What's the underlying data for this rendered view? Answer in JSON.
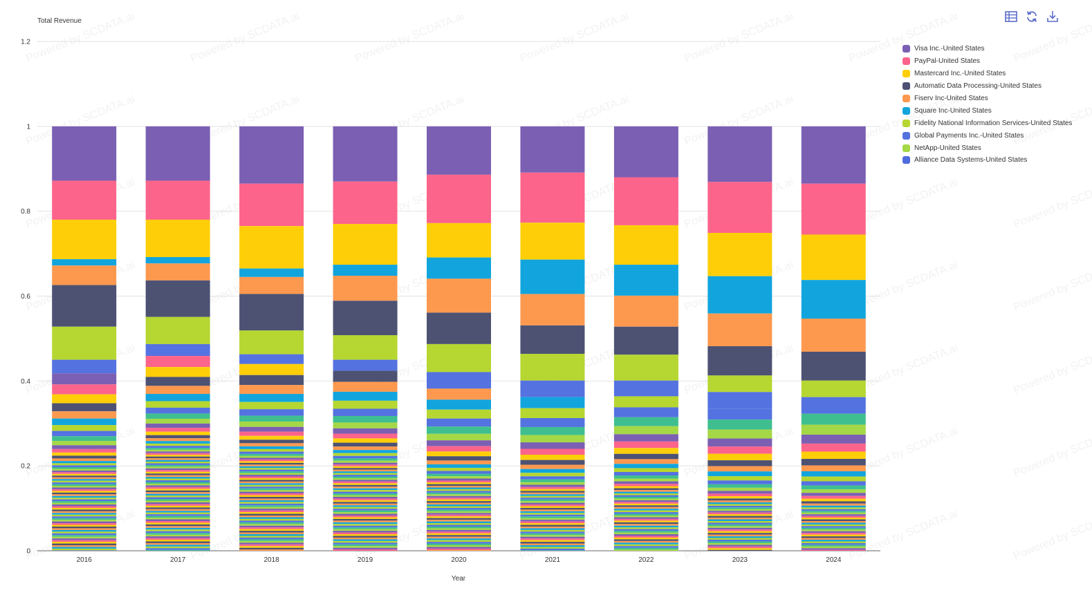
{
  "toolbar": {
    "table_icon": "table-icon",
    "refresh_icon": "refresh-icon",
    "download_icon": "download-icon"
  },
  "watermark": "Powered by SCDATA.ai",
  "chart_data": {
    "type": "bar",
    "stacked": true,
    "ylabel": "Total Revenue",
    "xlabel": "Year",
    "ylim": [
      0,
      1.2
    ],
    "yticks": [
      0,
      0.2,
      0.4,
      0.6,
      0.8,
      1,
      1.2
    ],
    "grid": true,
    "legend_position": "right",
    "categories": [
      "2016",
      "2017",
      "2018",
      "2019",
      "2020",
      "2021",
      "2022",
      "2023",
      "2024"
    ],
    "series": [
      {
        "name": "Visa Inc.-United States",
        "color": "#7b5fb3",
        "values": [
          0.128,
          0.128,
          0.135,
          0.13,
          0.114,
          0.109,
          0.12,
          0.131,
          0.135
        ]
      },
      {
        "name": "PayPal-United States",
        "color": "#fc648b",
        "values": [
          0.092,
          0.092,
          0.1,
          0.1,
          0.114,
          0.118,
          0.113,
          0.12,
          0.12
        ]
      },
      {
        "name": "Mastercard Inc.-United States",
        "color": "#fecf09",
        "values": [
          0.093,
          0.088,
          0.1,
          0.096,
          0.081,
          0.087,
          0.093,
          0.102,
          0.107
        ]
      },
      {
        "name": "Square Inc-United States",
        "color": "#12a5dd",
        "values": [
          0.015,
          0.015,
          0.02,
          0.026,
          0.05,
          0.081,
          0.073,
          0.088,
          0.091
        ]
      },
      {
        "name": "Fiserv Inc-United States",
        "color": "#fd994f",
        "values": [
          0.046,
          0.04,
          0.04,
          0.059,
          0.08,
          0.074,
          0.073,
          0.077,
          0.078
        ]
      },
      {
        "name": "Automatic Data Processing-United States",
        "color": "#4d5273",
        "values": [
          0.098,
          0.086,
          0.086,
          0.081,
          0.074,
          0.067,
          0.066,
          0.069,
          0.068
        ]
      },
      {
        "name": "Fidelity National Information Services-United States",
        "color": "#b6d631",
        "values": [
          0.078,
          0.064,
          0.056,
          0.058,
          0.066,
          0.063,
          0.061,
          0.039,
          0.039
        ]
      },
      {
        "name": "Global Payments Inc.-United States",
        "color": "#5472e0",
        "values": [
          0.032,
          0.028,
          0.023,
          0.026,
          0.039,
          0.039,
          0.037,
          0.039,
          0.039
        ]
      }
    ],
    "series_colors_not_in_legend_order": true,
    "remaining_series": [
      {
        "name": "NetApp-United States",
        "color": "#a5d846"
      },
      {
        "name": "Alliance Data Systems-United States",
        "color": "#4f6be0"
      }
    ],
    "other_small_segments_total": [
      0.418,
      0.459,
      0.44,
      0.424,
      0.382,
      0.362,
      0.364,
      0.335,
      0.323
    ]
  },
  "legend": [
    {
      "label": "Visa Inc.-United States",
      "color": "#7b5fb3"
    },
    {
      "label": "PayPal-United States",
      "color": "#fc648b"
    },
    {
      "label": "Mastercard Inc.-United States",
      "color": "#fecf09"
    },
    {
      "label": "Automatic Data Processing-United States",
      "color": "#4d5273"
    },
    {
      "label": "Fiserv Inc-United States",
      "color": "#fd994f"
    },
    {
      "label": "Square Inc-United States",
      "color": "#12a5dd"
    },
    {
      "label": "Fidelity National Information Services-United States",
      "color": "#b6d631"
    },
    {
      "label": "Global Payments Inc.-United States",
      "color": "#5472e0"
    },
    {
      "label": "NetApp-United States",
      "color": "#a5d846"
    },
    {
      "label": "Alliance Data Systems-United States",
      "color": "#4f6be0"
    }
  ]
}
